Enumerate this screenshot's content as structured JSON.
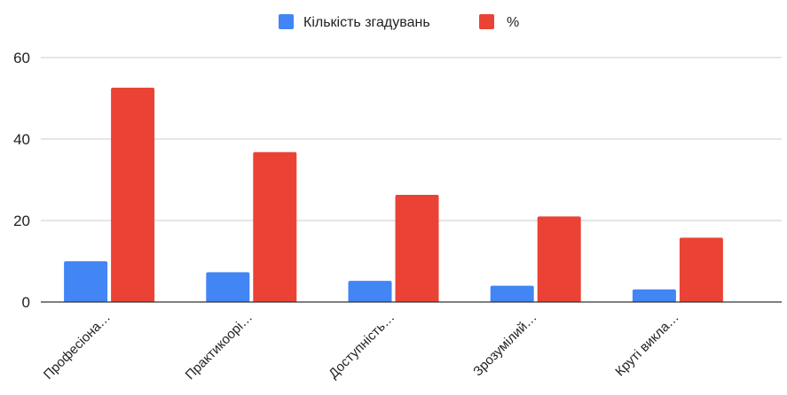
{
  "chart_data": {
    "type": "bar",
    "categories": [
      "Професіона…",
      "Практикоорі…",
      "Доступність…",
      "Зрозумілий…",
      "Круті викла…"
    ],
    "series": [
      {
        "name": "Кількість згадувань",
        "color": "#4285f4",
        "values": [
          10,
          7.3,
          5.2,
          4,
          3.1
        ]
      },
      {
        "name": "%",
        "color": "#ea4335",
        "values": [
          52.6,
          36.8,
          26.3,
          21,
          15.8
        ]
      }
    ],
    "ylim": [
      0,
      60
    ],
    "yticks": [
      "0",
      "20",
      "40",
      "60"
    ],
    "legend_position": "top",
    "grid": true,
    "title": "",
    "xlabel": "",
    "ylabel": ""
  }
}
